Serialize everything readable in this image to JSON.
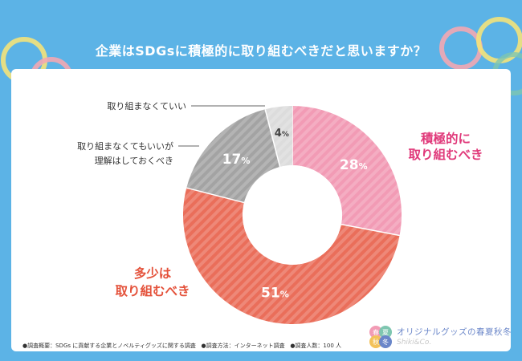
{
  "title": "企業はSDGsに積極的に取り組むべきだと思いますか？",
  "footer": {
    "survey": "●調査概要：SDGs に貢献する企業とノベルティグッズに関する調査",
    "method": "●調査方法：インターネット調査",
    "count": "●調査人数：100 人"
  },
  "brand": {
    "name": "オリジナルグッズの春夏秋冬",
    "sub": "Shiki&Co.",
    "logo_chars": [
      "春",
      "夏",
      "秋",
      "冬"
    ]
  },
  "chart_data": {
    "type": "pie",
    "variant": "donut",
    "title": "企業はSDGsに積極的に取り組むべきだと思いますか？",
    "slices": [
      {
        "label": "積極的に取り組むべき",
        "label_lines": [
          "積極的に",
          "取り組むべき"
        ],
        "value": 28,
        "display": "28",
        "color": "#f29bb5",
        "label_color": "#e0397a"
      },
      {
        "label": "多少は取り組むべき",
        "label_lines": [
          "多少は",
          "取り組むべき"
        ],
        "value": 51,
        "display": "51",
        "color": "#ea6e5a",
        "label_color": "#e4523b"
      },
      {
        "label": "取り組まなくてもいいが理解はしておくべき",
        "label_lines": [
          "取り組まなくてもいいが",
          "理解はしておくべき"
        ],
        "value": 17,
        "display": "17",
        "color": "#a3a3a3",
        "label_color": "#333333"
      },
      {
        "label": "取り組まなくていい",
        "label_lines": [
          "取り組まなくていい"
        ],
        "value": 4,
        "display": "4",
        "color": "#dcdcdc",
        "label_color": "#333333"
      }
    ],
    "unit": "%",
    "start": "top",
    "direction": "clockwise"
  }
}
